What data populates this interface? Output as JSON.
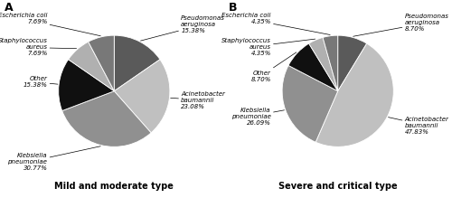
{
  "chart_data": [
    {
      "type": "pie",
      "title": "Mild and moderate type",
      "annotations": [
        "A"
      ],
      "categories": [
        "Pseudomonas\naeruginosa\n15.38%",
        "Acinetobacter\nbaumannii\n23.08%",
        "Klebsiella\npneumoniae\n30.77%",
        "Other\n15.38%",
        "Staphylococcus\naureus\n7.69%",
        "Escherichia coli\n7.69%"
      ],
      "values": [
        15.38,
        23.08,
        30.77,
        15.38,
        7.69,
        7.69
      ],
      "colors": [
        "#5a5a5a",
        "#c0c0c0",
        "#909090",
        "#101010",
        "#b0b0b0",
        "#787878"
      ]
    },
    {
      "type": "pie",
      "title": "Severe and critical type",
      "annotations": [
        "B"
      ],
      "categories": [
        "Pseudomonas\naeruginosa\n8.70%",
        "Acinetobacter\nbaumannii\n47.83%",
        "Klebsiella\npneumoniae\n26.09%",
        "Other\n8.70%",
        "Staphylococcus\naureus\n4.35%",
        "Escherichia coli\n4.35%"
      ],
      "values": [
        8.7,
        47.83,
        26.09,
        8.7,
        4.35,
        4.35
      ],
      "colors": [
        "#5a5a5a",
        "#c0c0c0",
        "#909090",
        "#101010",
        "#b0b0b0",
        "#787878"
      ]
    }
  ]
}
